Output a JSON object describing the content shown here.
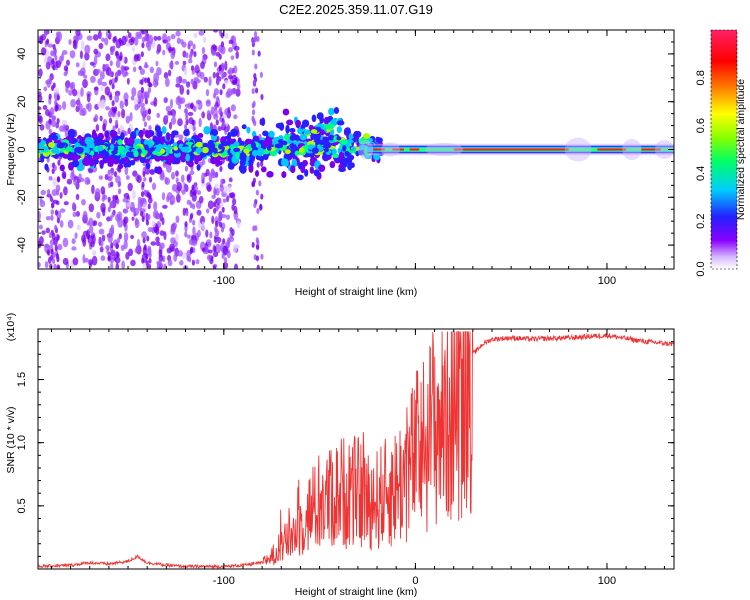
{
  "title": "C2E2.2025.359.11.07.G19",
  "chart_data": [
    {
      "type": "heatmap",
      "name": "spectrogram",
      "xlabel": "Height of straight line (km)",
      "ylabel": "Frequency (Hz)",
      "xlim": [
        -197,
        135
      ],
      "ylim": [
        -50,
        50
      ],
      "xticks": [
        -100,
        0,
        100
      ],
      "xtick_labels": [
        "-100",
        "",
        "100"
      ],
      "yticks": [
        -40,
        -20,
        0,
        20,
        40
      ],
      "ytick_labels": [
        "-40",
        "-20",
        "0",
        "20",
        "40"
      ],
      "colorbar": {
        "label": "Normalized spectral amplitude",
        "range": [
          0,
          1
        ],
        "ticks": [
          0.0,
          0.2,
          0.4,
          0.6,
          0.8
        ],
        "tick_labels": [
          "0.0",
          "0.2",
          "0.4",
          "0.6",
          "0.8"
        ],
        "colors": [
          "#ffffff",
          "#8800ff",
          "#2222ff",
          "#00ccff",
          "#00ff66",
          "#88ff00",
          "#ffff00",
          "#ff8800",
          "#ff0000",
          "#ff0066",
          "#ff2266"
        ]
      }
    },
    {
      "type": "line",
      "name": "snr",
      "xlabel": "Height of straight line (km)",
      "ylabel": "SNR (10 * v/v)",
      "y_multiplier_label": "(x10⁴)",
      "xlim": [
        -197,
        135
      ],
      "ylim": [
        0,
        1.9
      ],
      "xticks": [
        -100,
        0,
        100
      ],
      "xtick_labels": [
        "-100",
        "0",
        "100"
      ],
      "yticks": [
        0.5,
        1.0,
        1.5
      ],
      "ytick_labels": [
        "0.5",
        "1.0",
        "1.5"
      ],
      "color": "#ee3333",
      "series": [
        {
          "name": "SNR",
          "x": [
            -197,
            -180,
            -170,
            -160,
            -150,
            -145,
            -140,
            -130,
            -120,
            -100,
            -90,
            -80,
            -75,
            -70,
            -65,
            -60,
            -55,
            -50,
            -45,
            -40,
            -35,
            -30,
            -25,
            -20,
            -15,
            -10,
            -5,
            0,
            5,
            10,
            15,
            20,
            25,
            30,
            35,
            40,
            50,
            60,
            80,
            100,
            120,
            135
          ],
          "y": [
            0.02,
            0.03,
            0.05,
            0.04,
            0.06,
            0.1,
            0.05,
            0.03,
            0.02,
            0.02,
            0.03,
            0.05,
            0.1,
            0.18,
            0.25,
            0.35,
            0.45,
            0.5,
            0.55,
            0.6,
            0.62,
            0.6,
            0.55,
            0.55,
            0.6,
            0.65,
            0.75,
            0.9,
            1.0,
            1.15,
            1.2,
            1.35,
            1.55,
            1.7,
            1.78,
            1.82,
            1.83,
            1.82,
            1.83,
            1.85,
            1.8,
            1.78
          ]
        }
      ]
    }
  ]
}
